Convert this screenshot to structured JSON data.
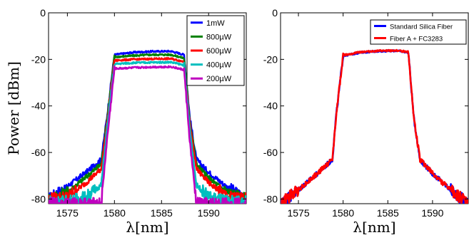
{
  "chart_data": [
    {
      "type": "line",
      "xlabel": "λ[nm]",
      "ylabel": "Power [dBm]",
      "xlim": [
        1573,
        1594
      ],
      "ylim": [
        -82,
        0
      ],
      "xticks": [
        "1575",
        "1580",
        "1585",
        "1590"
      ],
      "yticks": [
        "0",
        "-20",
        "-40",
        "-60",
        "-80"
      ],
      "grid": false,
      "legend_position": "top-right",
      "x": [
        1573,
        1575,
        1577,
        1578.6,
        1579.2,
        1580.0,
        1582.0,
        1584.0,
        1586.0,
        1587.4,
        1588.0,
        1588.7,
        1590,
        1592,
        1594
      ],
      "series": [
        {
          "name": "1mW",
          "color": "#0000ff",
          "values": [
            -80,
            -74.5,
            -68.5,
            -63,
            -45,
            -18,
            -17,
            -16.6,
            -16.5,
            -18,
            -45,
            -63,
            -68.5,
            -75,
            -80
          ]
        },
        {
          "name": "800µW",
          "color": "#008000",
          "values": [
            -80,
            -77,
            -70.5,
            -65,
            -46,
            -19,
            -18.4,
            -18,
            -18,
            -19.5,
            -46,
            -65,
            -71,
            -77,
            -80
          ]
        },
        {
          "name": "600µW",
          "color": "#ff0000",
          "values": [
            -80,
            -79,
            -73,
            -67,
            -48,
            -20.5,
            -20,
            -19.8,
            -19.7,
            -21,
            -48,
            -67,
            -73,
            -79,
            -80
          ]
        },
        {
          "name": "400µW",
          "color": "#00bfbf",
          "values": [
            -81,
            -81,
            -79,
            -74,
            -50,
            -22,
            -21.5,
            -21.3,
            -21.2,
            -22.5,
            -50,
            -74,
            -79,
            -81,
            -81
          ]
        },
        {
          "name": "200µW",
          "color": "#bf00bf",
          "values": [
            -82,
            -82,
            -82,
            -82,
            -55,
            -24,
            -23.6,
            -23.3,
            -23.2,
            -24.5,
            -55,
            -82,
            -82,
            -82,
            -82
          ]
        }
      ]
    },
    {
      "type": "line",
      "xlabel": "λ[nm]",
      "ylabel": "",
      "xlim": [
        1573,
        1594
      ],
      "ylim": [
        -82,
        0
      ],
      "xticks": [
        "1575",
        "1580",
        "1585",
        "1590"
      ],
      "yticks": [
        "0",
        "-20",
        "-40",
        "-60",
        "-80"
      ],
      "grid": false,
      "legend_position": "top-right",
      "x": [
        1573,
        1575,
        1577,
        1578.8,
        1579.2,
        1580.0,
        1582.0,
        1584.0,
        1586.0,
        1587.3,
        1587.9,
        1588.6,
        1590,
        1592,
        1594
      ],
      "series": [
        {
          "name": "Standard Silica Fiber",
          "color": "#0000ff",
          "values": [
            -82,
            -76,
            -69.5,
            -63,
            -45,
            -18.5,
            -17,
            -16.5,
            -16.3,
            -17,
            -45,
            -63,
            -69,
            -76,
            -82
          ]
        },
        {
          "name": "Fiber A + FC3283",
          "color": "#ff0000",
          "values": [
            -82,
            -76,
            -69.5,
            -63,
            -45,
            -18.2,
            -16.8,
            -16.4,
            -16.2,
            -16.8,
            -45,
            -63,
            -69,
            -76,
            -82
          ]
        }
      ]
    }
  ]
}
